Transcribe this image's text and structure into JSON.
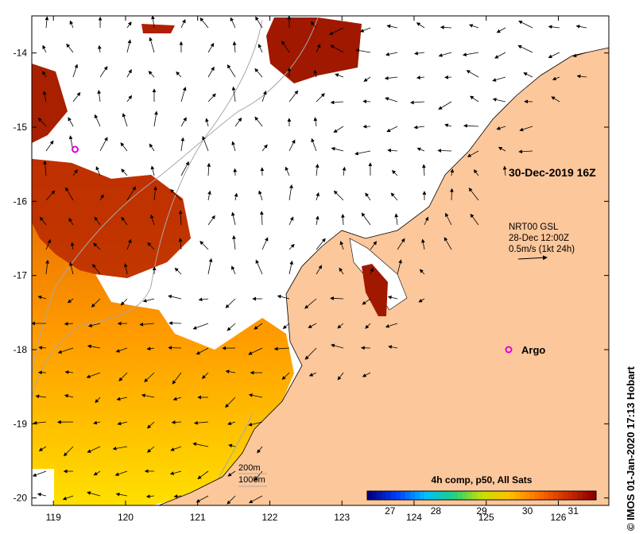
{
  "chart_data": {
    "type": "heatmap",
    "title": "30-Dec-2019 16Z",
    "x_ticks": [
      "119",
      "120",
      "121",
      "122",
      "123",
      "124",
      "125",
      "126"
    ],
    "y_ticks": [
      "-14",
      "-15",
      "-16",
      "-17",
      "-18",
      "-19",
      "-20"
    ],
    "xlim": [
      118.7,
      126.7
    ],
    "ylim": [
      -20.1,
      -13.5
    ],
    "currents": {
      "product": "NRT00 GSL",
      "time": "28-Dec 12:00Z",
      "scale": "0.5m/s (1kt 24h)"
    },
    "argo": {
      "label": "Argo",
      "floats": [
        [
          119.3,
          -15.3
        ]
      ]
    },
    "isobaths": [
      "200m",
      "1000m"
    ],
    "colorbar": {
      "title": "4h comp, p50, All Sats",
      "ticks": [
        "27",
        "28",
        "29",
        "30",
        "31"
      ],
      "range": [
        26.5,
        31.5
      ],
      "colors": [
        "#00007f",
        "#0040ff",
        "#00c0ff",
        "#20d080",
        "#c8e000",
        "#ffc000",
        "#ff7000",
        "#d03000",
        "#8b0000"
      ]
    },
    "colors": {
      "land": "#fcc79b",
      "argo_marker": "#e000e0"
    }
  },
  "credit": "© IMOS 01-Jan-2020 17:13 Hobart"
}
